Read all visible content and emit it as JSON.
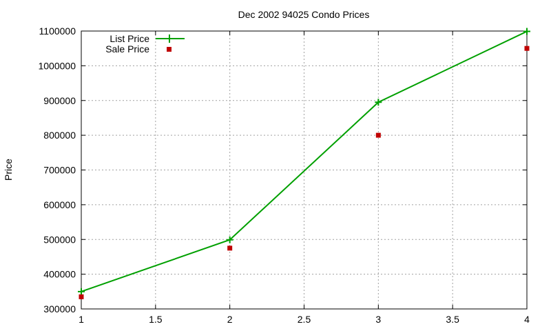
{
  "chart_data": {
    "type": "line",
    "title": "Dec 2002 94025 Condo Prices",
    "xlabel": "",
    "ylabel": "Price",
    "xlim": [
      1,
      4
    ],
    "ylim": [
      300000,
      1100000
    ],
    "x_ticks": [
      "1",
      "1.5",
      "2",
      "2.5",
      "3",
      "3.5",
      "4"
    ],
    "y_ticks": [
      "300000",
      "400000",
      "500000",
      "600000",
      "700000",
      "800000",
      "900000",
      "1000000",
      "1100000"
    ],
    "grid": true,
    "legend_position": "top-left",
    "series": [
      {
        "name": "List Price",
        "kind": "line-with-points",
        "marker": "plus",
        "color": "#00a000",
        "x": [
          1,
          2,
          3,
          4
        ],
        "values": [
          350000,
          499000,
          895000,
          1099000
        ]
      },
      {
        "name": "Sale Price",
        "kind": "points",
        "marker": "square",
        "color": "#c00000",
        "x": [
          1,
          2,
          3,
          4
        ],
        "values": [
          335000,
          475000,
          800000,
          1050000
        ]
      }
    ]
  }
}
